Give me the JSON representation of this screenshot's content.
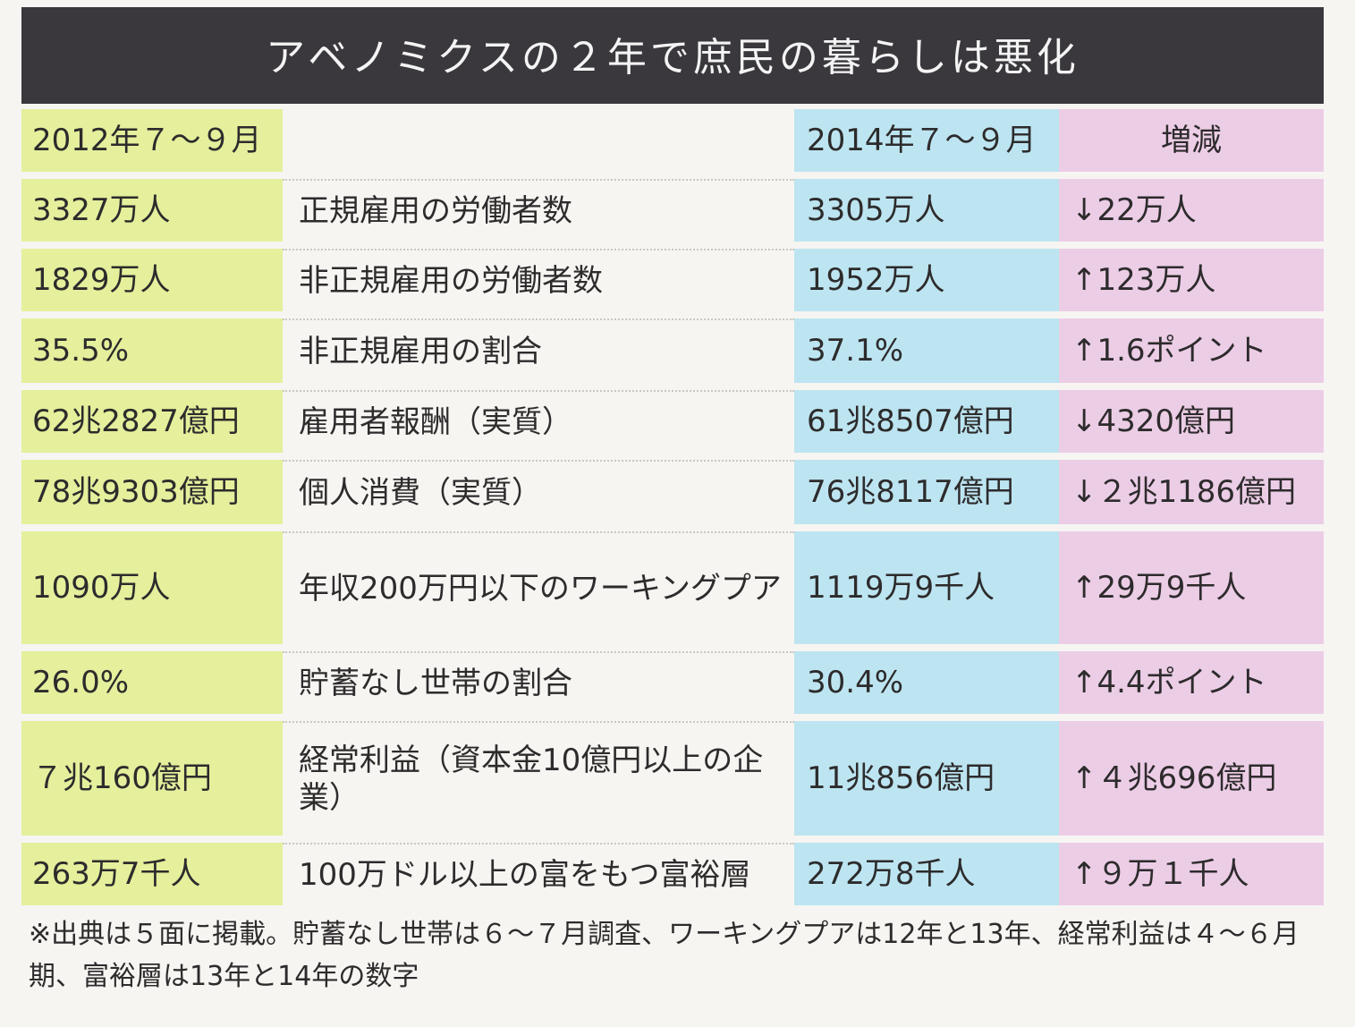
{
  "title": "アベノミクスの２年で庶民の暮らしは悪化",
  "headers": {
    "col_2012": "2012年７～９月",
    "col_item": "",
    "col_2014": "2014年７～９月",
    "col_change": "増減"
  },
  "rows": [
    {
      "v2012": "3327万人",
      "item": "正規雇用の労働者数",
      "v2014": "3305万人",
      "change": "↓22万人"
    },
    {
      "v2012": "1829万人",
      "item": "非正規雇用の労働者数",
      "v2014": "1952万人",
      "change": "↑123万人"
    },
    {
      "v2012": "35.5%",
      "item": "非正規雇用の割合",
      "v2014": "37.1%",
      "change": "↑1.6ポイント"
    },
    {
      "v2012": "62兆2827億円",
      "item": "雇用者報酬（実質）",
      "v2014": "61兆8507億円",
      "change": "↓4320億円"
    },
    {
      "v2012": "78兆9303億円",
      "item": "個人消費（実質）",
      "v2014": "76兆8117億円",
      "change": "↓２兆1186億円"
    },
    {
      "v2012": "1090万人",
      "item": "年収200万円以下のワーキングプア",
      "v2014": "1119万9千人",
      "change": "↑29万9千人"
    },
    {
      "v2012": "26.0%",
      "item": "貯蓄なし世帯の割合",
      "v2014": "30.4%",
      "change": "↑4.4ポイント"
    },
    {
      "v2012": "７兆160億円",
      "item": "経常利益（資本金10億円以上の企業）",
      "v2014": "11兆856億円",
      "change": "↑４兆696億円"
    },
    {
      "v2012": "263万7千人",
      "item": "100万ドル以上の富をもつ富裕層",
      "v2014": "272万8千人",
      "change": "↑９万１千人"
    }
  ],
  "footnote": "※出典は５面に掲載。貯蓄なし世帯は６～７月調査、ワーキングプアは12年と13年、経常利益は４～６月期、富裕層は13年と14年の数字",
  "colors": {
    "title_bg": "#3a383d",
    "col_2012_bg": "#e5ef9c",
    "col_2014_bg": "#bde5f1",
    "col_change_bg": "#eccde6"
  }
}
